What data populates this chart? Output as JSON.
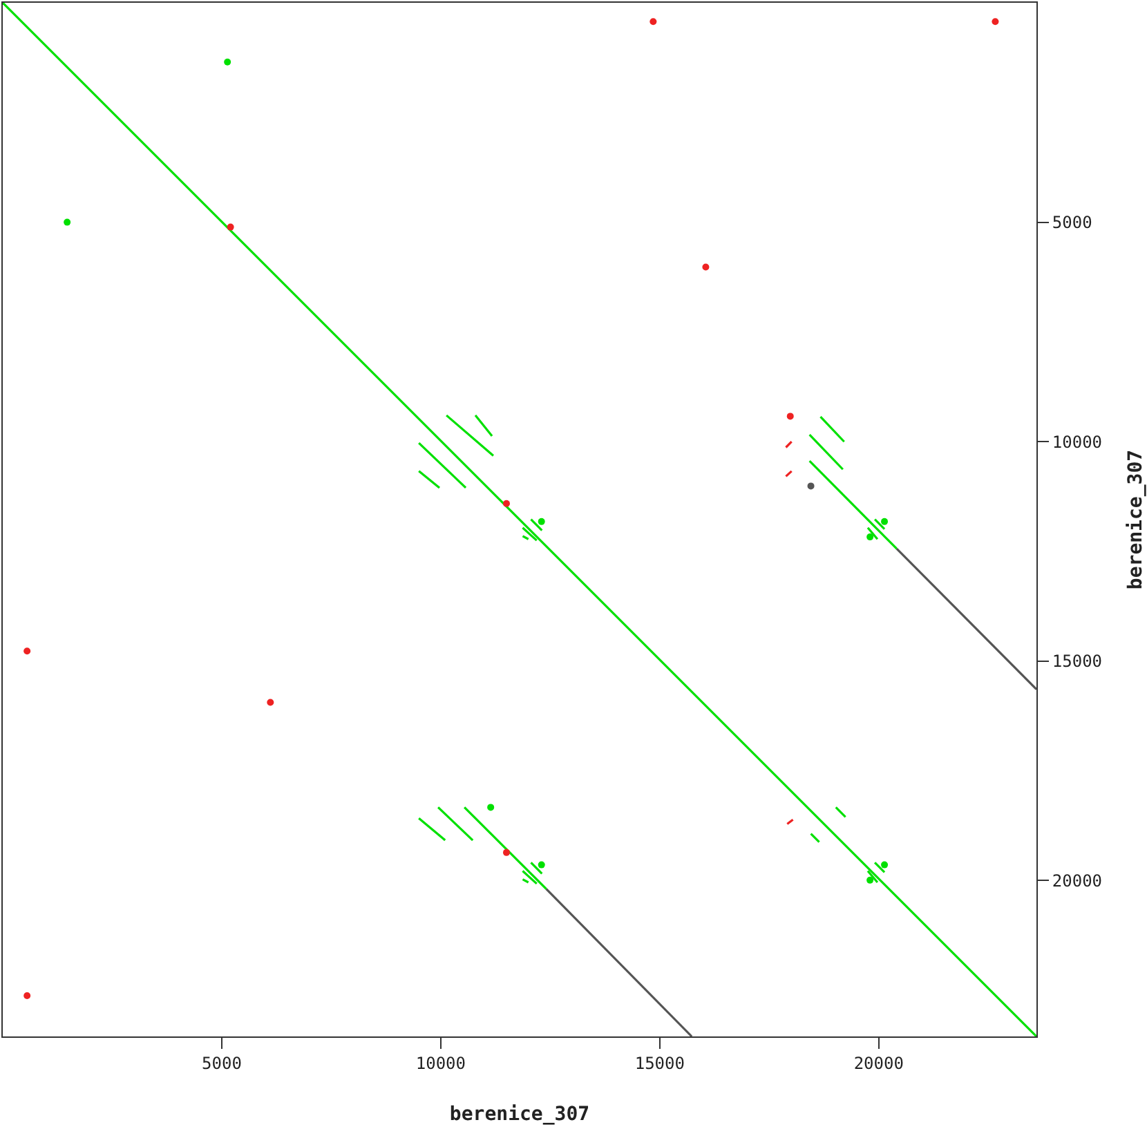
{
  "chart_data": {
    "type": "line",
    "xlabel": "berenice_307",
    "ylabel": "berenice_307",
    "xlim": [
      0,
      23600
    ],
    "ylim": [
      23550,
      0
    ],
    "xticks": [
      5000,
      10000,
      15000,
      20000
    ],
    "yticks": [
      5000,
      10000,
      15000,
      20000
    ],
    "marker": "none",
    "line_style": "solid",
    "series": [
      {
        "color": "#00e000",
        "x": [
          0,
          23600
        ],
        "values": [
          0,
          23550
        ]
      },
      {
        "color": "#00e000",
        "x": [
          10130,
          11200
        ],
        "values": [
          9400,
          10320
        ]
      },
      {
        "color": "#00e000",
        "x": [
          10790,
          11170
        ],
        "values": [
          9400,
          9870
        ]
      },
      {
        "color": "#00e000",
        "x": [
          9500,
          10570
        ],
        "values": [
          10030,
          11050
        ]
      },
      {
        "color": "#00e000",
        "x": [
          9500,
          9970
        ],
        "values": [
          10670,
          11050
        ]
      },
      {
        "color": "#00e000",
        "x": [
          12060,
          12310
        ],
        "values": [
          11770,
          12020
        ]
      },
      {
        "type": "scatter",
        "marker": "circle",
        "color": "#00e000",
        "x": [
          12300
        ],
        "values": [
          11820
        ]
      },
      {
        "color": "#00e000",
        "x": [
          11870,
          12190
        ],
        "values": [
          11960,
          12250
        ]
      },
      {
        "color": "#00e000",
        "x": [
          11870,
          12000
        ],
        "values": [
          12150,
          12220
        ]
      },
      {
        "color": "#00e000",
        "x": [
          19910,
          20130
        ],
        "values": [
          11770,
          11990
        ]
      },
      {
        "type": "scatter",
        "marker": "circle",
        "color": "#00e000",
        "x": [
          20130
        ],
        "values": [
          11820
        ]
      },
      {
        "color": "#00e000",
        "x": [
          19750,
          19970
        ],
        "values": [
          11960,
          12220
        ]
      },
      {
        "type": "scatter",
        "marker": "circle",
        "color": "#00e000",
        "x": [
          19800
        ],
        "values": [
          12170
        ]
      },
      {
        "color": "#00e000",
        "x": [
          12060,
          12310
        ],
        "values": [
          19590,
          19840
        ]
      },
      {
        "type": "scatter",
        "marker": "circle",
        "color": "#00e000",
        "x": [
          12300
        ],
        "values": [
          19640
        ]
      },
      {
        "color": "#00e000",
        "x": [
          11870,
          12190
        ],
        "values": [
          19780,
          20070
        ]
      },
      {
        "color": "#00e000",
        "x": [
          11870,
          12000
        ],
        "values": [
          19970,
          20040
        ]
      },
      {
        "color": "#00e000",
        "x": [
          19910,
          20130
        ],
        "values": [
          19590,
          19810
        ]
      },
      {
        "type": "scatter",
        "marker": "circle",
        "color": "#00e000",
        "x": [
          20130
        ],
        "values": [
          19640
        ]
      },
      {
        "color": "#00e000",
        "x": [
          19750,
          19970
        ],
        "values": [
          19780,
          20040
        ]
      },
      {
        "type": "scatter",
        "marker": "circle",
        "color": "#00e000",
        "x": [
          19800
        ],
        "values": [
          19990
        ]
      },
      {
        "color": "#00e000",
        "x": [
          18670,
          19210
        ],
        "values": [
          9430,
          10000
        ]
      },
      {
        "color": "#00e000",
        "x": [
          18420,
          19180
        ],
        "values": [
          9840,
          10630
        ]
      },
      {
        "color": "#00e000",
        "x": [
          18420,
          20410
        ],
        "values": [
          10440,
          12440
        ]
      },
      {
        "color": "#00e000",
        "x": [
          9500,
          10100
        ],
        "values": [
          18580,
          19080
        ]
      },
      {
        "color": "#00e000",
        "x": [
          9940,
          10730
        ],
        "values": [
          18330,
          19080
        ]
      },
      {
        "color": "#00e000",
        "x": [
          10540,
          12410
        ],
        "values": [
          18330,
          20190
        ]
      },
      {
        "color": "#00e000",
        "x": [
          19020,
          19240
        ],
        "values": [
          18330,
          18550
        ]
      },
      {
        "color": "#00e000",
        "x": [
          18450,
          18640
        ],
        "values": [
          18930,
          19120
        ]
      },
      {
        "type": "scatter",
        "marker": "circle",
        "color": "#00e000",
        "x": [
          5130
        ],
        "values": [
          1350
        ]
      },
      {
        "type": "scatter",
        "marker": "circle",
        "color": "#00e000",
        "x": [
          1470
        ],
        "values": [
          5000
        ]
      },
      {
        "type": "scatter",
        "marker": "circle",
        "color": "#00e000",
        "x": [
          11140
        ],
        "values": [
          18330
        ]
      },
      {
        "type": "scatter",
        "marker": "circle",
        "color": "#ee2222",
        "x": [
          14850
        ],
        "values": [
          430
        ]
      },
      {
        "type": "scatter",
        "marker": "circle",
        "color": "#ee2222",
        "x": [
          22660
        ],
        "values": [
          430
        ]
      },
      {
        "type": "scatter",
        "marker": "circle",
        "color": "#ee2222",
        "x": [
          5200
        ],
        "values": [
          5110
        ]
      },
      {
        "type": "scatter",
        "marker": "circle",
        "color": "#ee2222",
        "x": [
          16050
        ],
        "values": [
          6020
        ]
      },
      {
        "type": "scatter",
        "marker": "circle",
        "color": "#ee2222",
        "x": [
          17980
        ],
        "values": [
          9420
        ]
      },
      {
        "color": "#ee2222",
        "x": [
          17880,
          18010
        ],
        "values": [
          10130,
          10000
        ]
      },
      {
        "color": "#ee2222",
        "x": [
          17880,
          18010
        ],
        "values": [
          10790,
          10670
        ]
      },
      {
        "type": "scatter",
        "marker": "circle",
        "color": "#ee2222",
        "x": [
          11500
        ],
        "values": [
          11410
        ]
      },
      {
        "type": "scatter",
        "marker": "circle",
        "color": "#ee2222",
        "x": [
          11500
        ],
        "values": [
          19360
        ]
      },
      {
        "color": "#ee2222",
        "x": [
          17910,
          18040
        ],
        "values": [
          18710,
          18610
        ]
      },
      {
        "type": "scatter",
        "marker": "circle",
        "color": "#ee2222",
        "x": [
          555
        ],
        "values": [
          14770
        ]
      },
      {
        "type": "scatter",
        "marker": "circle",
        "color": "#ee2222",
        "x": [
          6110
        ],
        "values": [
          15940
        ]
      },
      {
        "type": "scatter",
        "marker": "circle",
        "color": "#ee2222",
        "x": [
          555
        ],
        "values": [
          22620
        ]
      },
      {
        "color": "#555555",
        "x": [
          20410,
          23600
        ],
        "values": [
          12440,
          15640
        ]
      },
      {
        "color": "#555555",
        "x": [
          12410,
          15730
        ],
        "values": [
          20190,
          23550
        ]
      },
      {
        "type": "scatter",
        "marker": "circle",
        "color": "#555555",
        "x": [
          18450
        ],
        "values": [
          11010
        ]
      }
    ]
  }
}
